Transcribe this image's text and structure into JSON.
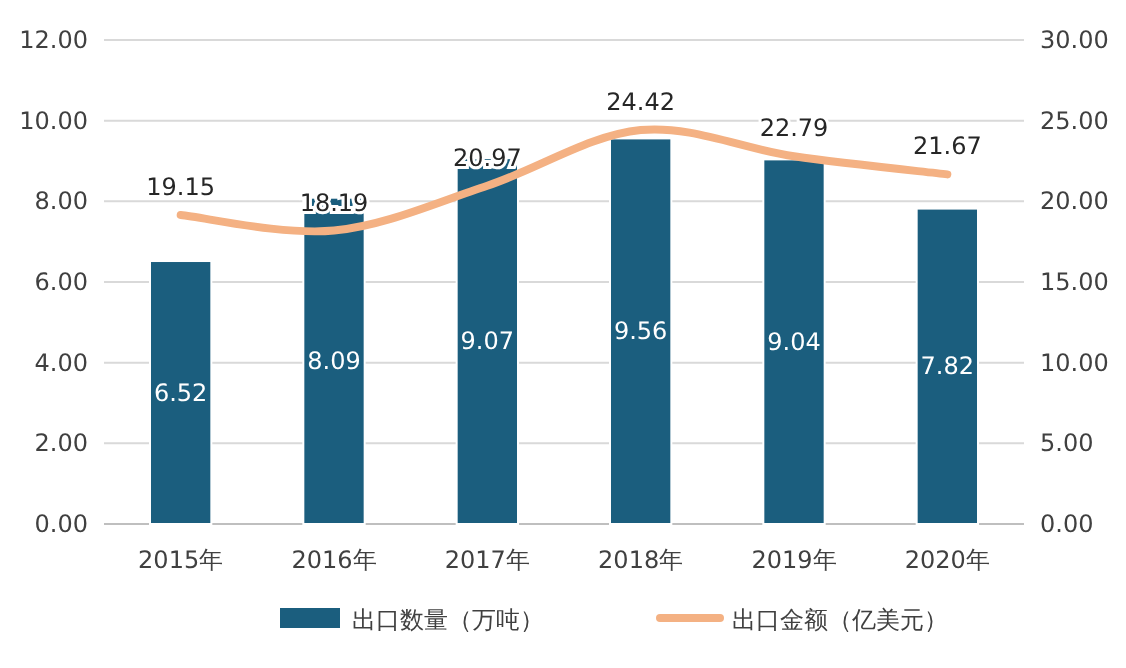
{
  "chart_data": {
    "type": "bar",
    "categories": [
      "2015年",
      "2016年",
      "2017年",
      "2018年",
      "2019年",
      "2020年"
    ],
    "series": [
      {
        "name": "出口数量（万吨）",
        "color": "#1b5e7e",
        "values": [
          6.52,
          8.09,
          9.07,
          9.56,
          9.04,
          7.82
        ]
      },
      {
        "name": "出口金额（亿美元）",
        "type": "line",
        "axis": "y2",
        "color": "#f4b183",
        "values": [
          19.15,
          18.19,
          20.97,
          24.42,
          22.79,
          21.67
        ]
      }
    ],
    "ylim": [
      0,
      12
    ],
    "yticks": [
      {
        "value": 0,
        "label": "0.00"
      },
      {
        "value": 2,
        "label": "2.00"
      },
      {
        "value": 4,
        "label": "4.00"
      },
      {
        "value": 6,
        "label": "6.00"
      },
      {
        "value": 8,
        "label": "8.00"
      },
      {
        "value": 10,
        "label": "10.00"
      },
      {
        "value": 12,
        "label": "12.00"
      }
    ],
    "y2lim": [
      0,
      30
    ],
    "y2ticks": [
      {
        "value": 0,
        "label": "0.00"
      },
      {
        "value": 5,
        "label": "5.00"
      },
      {
        "value": 10,
        "label": "10.00"
      },
      {
        "value": 15,
        "label": "15.00"
      },
      {
        "value": 20,
        "label": "20.00"
      },
      {
        "value": 25,
        "label": "25.00"
      },
      {
        "value": 30,
        "label": "30.00"
      }
    ],
    "grid": "y",
    "legend": "bottom",
    "data_labels": true,
    "marker": "none",
    "line_style": "solid"
  }
}
